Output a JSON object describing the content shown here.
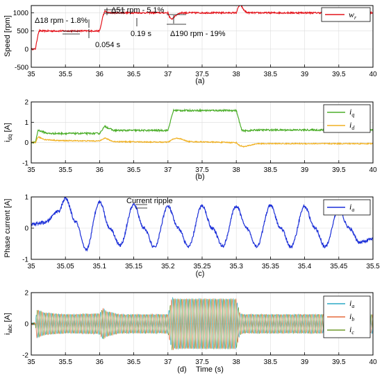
{
  "colors": {
    "red": "#e4141c",
    "green": "#4cae2a",
    "orange": "#f0b020",
    "blue": "#1a2ed8",
    "ia": "#2aa9c6",
    "ib": "#e66a3a",
    "ic": "#6f9a2a",
    "grid": "#dcdcdc"
  },
  "chart_data": [
    {
      "type": "line",
      "panel_label": "(a)",
      "ylabel": "Speed [rpm]",
      "xlabel": "",
      "xlim": [
        35,
        40
      ],
      "ylim": [
        -500,
        1200
      ],
      "xticks": [
        35,
        35.5,
        36,
        36.5,
        37,
        37.5,
        38,
        38.5,
        39,
        39.5,
        40
      ],
      "yticks": [
        -500,
        0,
        500,
        1000
      ],
      "grid": true,
      "legend": "top-right",
      "series": [
        {
          "name": "w",
          "sub": "r",
          "color": "red",
          "x": [
            35.0,
            35.06,
            35.08,
            35.1,
            35.12,
            35.14,
            36.0,
            36.02,
            36.05,
            36.08,
            36.12,
            37.0,
            37.02,
            37.05,
            37.1,
            37.15,
            37.2,
            38.0,
            38.03,
            38.06,
            38.1,
            38.15,
            38.2,
            40.0
          ],
          "y": [
            0,
            0,
            200,
            420,
            510,
            500,
            500,
            650,
            920,
            1050,
            1000,
            1000,
            900,
            815,
            900,
            980,
            1000,
            1000,
            1150,
            1250,
            1100,
            1010,
            1000,
            1000
          ],
          "ripple": 20
        }
      ],
      "annotations": [
        {
          "text": "Δ18 rpm - 1.8%"
        },
        {
          "text": "0.054 s"
        },
        {
          "text": "Δ51 rpm - 5.1%"
        },
        {
          "text": "0.19 s"
        },
        {
          "text": "Δ190 rpm - 19%"
        }
      ]
    },
    {
      "type": "line",
      "panel_label": "(b)",
      "ylabel": "i",
      "ylabel_sub": "dq",
      "ylabel_unit": " [A]",
      "xlabel": "",
      "xlim": [
        35,
        40
      ],
      "ylim": [
        -1,
        2
      ],
      "xticks": [
        35,
        35.5,
        36,
        36.5,
        37,
        37.5,
        38,
        38.5,
        39,
        39.5,
        40
      ],
      "yticks": [
        -1,
        0,
        1,
        2
      ],
      "grid": true,
      "legend": "top-right",
      "series": [
        {
          "name": "i",
          "sub": "q",
          "color": "green",
          "x": [
            35.0,
            35.06,
            35.1,
            35.15,
            35.25,
            36.0,
            36.04,
            36.08,
            36.2,
            37.0,
            37.08,
            37.15,
            38.0,
            38.08,
            38.15,
            38.3,
            40.0
          ],
          "y": [
            0.0,
            0.0,
            0.62,
            0.55,
            0.45,
            0.45,
            0.65,
            0.8,
            0.6,
            0.6,
            1.58,
            1.58,
            1.58,
            0.6,
            0.58,
            0.62,
            0.62
          ],
          "ripple": 0.04
        },
        {
          "name": "i",
          "sub": "d",
          "color": "orange",
          "x": [
            35.0,
            35.06,
            35.1,
            35.2,
            35.4,
            36.0,
            36.04,
            36.08,
            36.2,
            37.0,
            37.08,
            37.15,
            37.3,
            38.0,
            38.05,
            38.12,
            38.3,
            40.0
          ],
          "y": [
            0.0,
            0.0,
            0.28,
            0.15,
            0.1,
            0.08,
            0.18,
            0.22,
            0.05,
            0.02,
            0.18,
            0.22,
            0.05,
            0.0,
            -0.15,
            -0.2,
            -0.05,
            -0.05
          ],
          "ripple": 0.025
        }
      ]
    },
    {
      "type": "line",
      "panel_label": "(c)",
      "ylabel": "Phase current [A]",
      "xlabel": "",
      "xlim": [
        35,
        35.5
      ],
      "ylim": [
        -1,
        1
      ],
      "xticks": [
        35,
        35.05,
        35.1,
        35.15,
        35.2,
        35.25,
        35.3,
        35.35,
        35.4,
        35.45,
        35.5
      ],
      "yticks": [
        -1,
        0,
        1
      ],
      "grid": true,
      "legend": "right",
      "series": [
        {
          "name": "i",
          "sub": "a",
          "color": "blue",
          "x": [
            35.0,
            35.02,
            35.04,
            35.05,
            35.065,
            35.08,
            35.1,
            35.115,
            35.13,
            35.15,
            35.165,
            35.18,
            35.2,
            35.215,
            35.23,
            35.25,
            35.265,
            35.28,
            35.3,
            35.315,
            35.33,
            35.35,
            35.365,
            35.38,
            35.4,
            35.415,
            35.43,
            35.45,
            35.465,
            35.48,
            35.5
          ],
          "y": [
            0.12,
            0.18,
            0.55,
            0.95,
            0.2,
            -0.7,
            0.85,
            0.0,
            -0.55,
            0.75,
            0.0,
            -0.62,
            0.7,
            0.0,
            -0.6,
            0.72,
            0.0,
            -0.58,
            0.7,
            0.0,
            -0.58,
            0.72,
            0.0,
            -0.6,
            0.7,
            0.0,
            -0.6,
            0.6,
            0.0,
            -0.45,
            -0.35
          ],
          "ripple": 0.05
        }
      ],
      "annotations": [
        {
          "text": "Current ripple"
        }
      ]
    },
    {
      "type": "line",
      "panel_label": "(d)",
      "ylabel": "i",
      "ylabel_sub": "abc",
      "ylabel_unit": " [A]",
      "xlabel": "Time (s)",
      "xlim": [
        35,
        40
      ],
      "ylim": [
        -2,
        2
      ],
      "xticks": [
        35,
        35.5,
        36,
        36.5,
        37,
        37.5,
        38,
        38.5,
        39,
        39.5,
        40
      ],
      "yticks": [
        -2,
        0,
        2
      ],
      "grid": true,
      "legend": "right",
      "series": [
        {
          "name": "i",
          "sub": "a",
          "color": "ia"
        },
        {
          "name": "i",
          "sub": "b",
          "color": "ib"
        },
        {
          "name": "i",
          "sub": "c",
          "color": "ic"
        }
      ],
      "envelope": {
        "x": [
          35.0,
          35.06,
          35.08,
          35.2,
          35.5,
          36.0,
          36.05,
          36.1,
          36.3,
          37.0,
          37.06,
          37.1,
          38.0,
          38.05,
          38.1,
          40.0
        ],
        "amp": [
          0.05,
          0.05,
          0.9,
          0.7,
          0.6,
          0.65,
          1.0,
          0.8,
          0.6,
          0.6,
          1.7,
          1.6,
          1.6,
          0.7,
          0.6,
          0.6
        ]
      }
    }
  ]
}
